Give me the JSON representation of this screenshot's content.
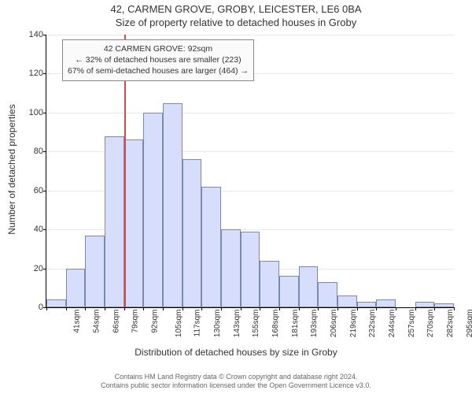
{
  "header": {
    "address": "42, CARMEN GROVE, GROBY, LEICESTER, LE6 0BA",
    "subtitle": "Size of property relative to detached houses in Groby"
  },
  "axes": {
    "ylabel": "Number of detached properties",
    "xlabel": "Distribution of detached houses by size in Groby",
    "ylim": [
      0,
      140
    ],
    "yticks": [
      0,
      20,
      40,
      60,
      80,
      100,
      120,
      140
    ],
    "label_fontsize": 12,
    "tick_fontsize": 11
  },
  "histogram": {
    "type": "histogram",
    "bar_fill": "#d7defb",
    "bar_stroke": "#7a8aad",
    "grid_color": "#e9e9e9",
    "background_color": "#ffffff",
    "categories": [
      "41sqm",
      "54sqm",
      "66sqm",
      "79sqm",
      "92sqm",
      "105sqm",
      "117sqm",
      "130sqm",
      "143sqm",
      "155sqm",
      "168sqm",
      "181sqm",
      "193sqm",
      "206sqm",
      "219sqm",
      "232sqm",
      "244sqm",
      "257sqm",
      "270sqm",
      "282sqm",
      "295sqm"
    ],
    "values": [
      4,
      20,
      37,
      88,
      86,
      100,
      105,
      76,
      62,
      40,
      39,
      24,
      16,
      21,
      13,
      6,
      3,
      4,
      0,
      3,
      2
    ]
  },
  "reference_line": {
    "category_index": 4,
    "color": "#d94a4a",
    "width": 2
  },
  "annotation": {
    "line1": "42 CARMEN GROVE: 92sqm",
    "line2": "← 32% of detached houses are smaller (223)",
    "line3": "67% of semi-detached houses are larger (464) →",
    "border_color": "#888888",
    "bg_color": "#fafafa",
    "fontsize": 10.5
  },
  "footer": {
    "line1": "Contains HM Land Registry data © Crown copyright and database right 2024.",
    "line2": "Contains public sector information licensed under the Open Government Licence v3.0."
  }
}
